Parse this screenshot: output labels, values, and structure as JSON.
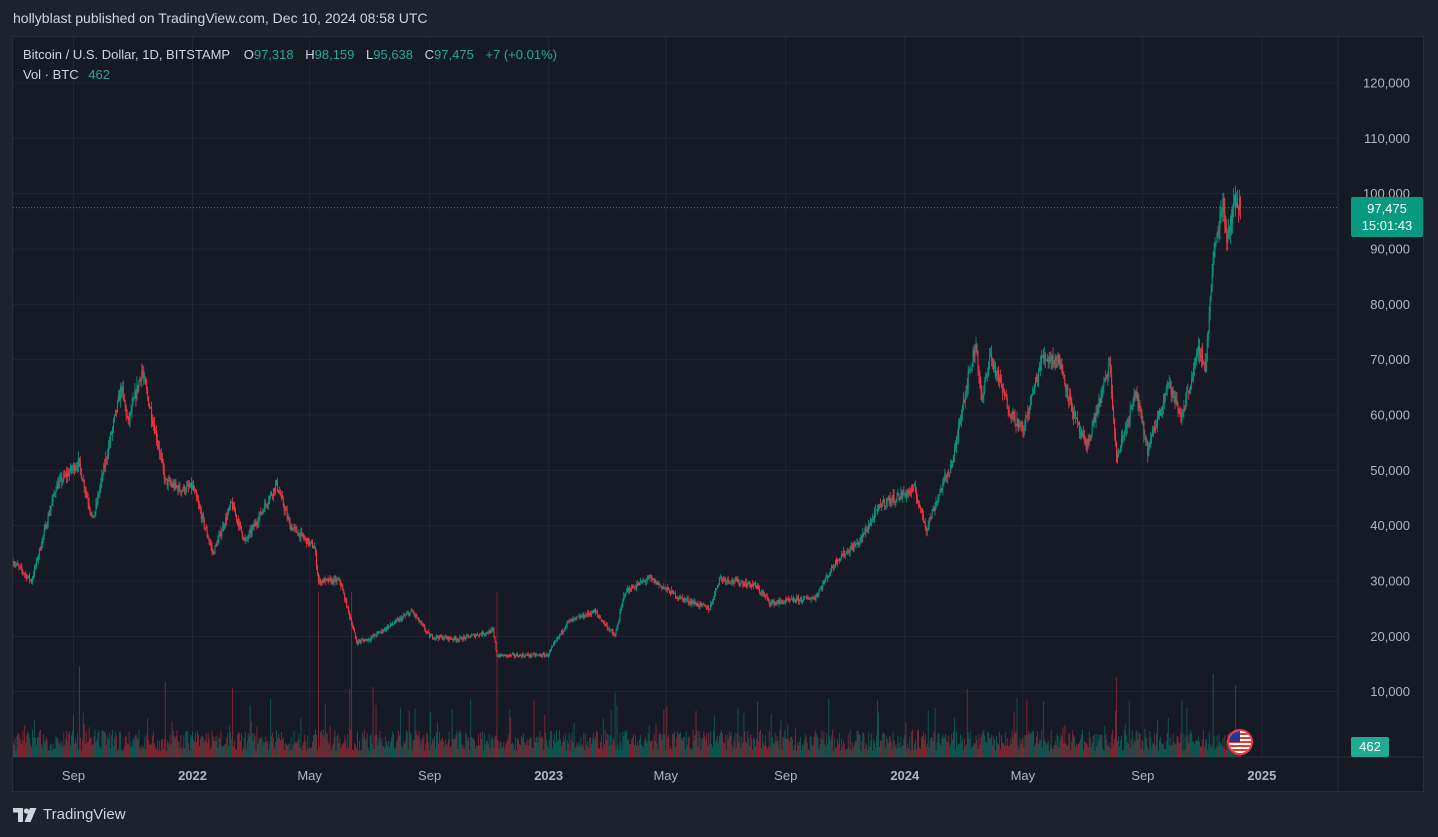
{
  "header": {
    "published": "hollyblast published on TradingView.com, Dec 10, 2024 08:58 UTC"
  },
  "legend": {
    "symbol": "Bitcoin / U.S. Dollar, 1D, BITSTAMP",
    "o_label": "O",
    "o_value": "97,318",
    "h_label": "H",
    "h_value": "98,159",
    "l_label": "L",
    "l_value": "95,638",
    "c_label": "C",
    "c_value": "97,475",
    "change": "+7 (+0.01%)",
    "vol_label": "Vol · BTC",
    "vol_value": "462"
  },
  "price_badge": {
    "price": "97,475",
    "countdown": "15:01:43"
  },
  "volume_badge": "462",
  "footer": {
    "brand": "TradingView"
  },
  "colors": {
    "up": "#089981",
    "down": "#f23645",
    "bg": "#161a25",
    "grid": "#232733"
  },
  "icons": {
    "event": "us-flag-icon",
    "logo": "tradingview-logo-icon"
  },
  "chart_data": {
    "type": "candlestick",
    "series_name": "Bitcoin / U.S. Dollar",
    "y_axis": {
      "ticks": [
        10000,
        20000,
        30000,
        40000,
        50000,
        60000,
        70000,
        80000,
        90000,
        100000,
        110000,
        120000
      ],
      "tick_labels": [
        "10,000",
        "20,000",
        "30,000",
        "40,000",
        "50,000",
        "60,000",
        "70,000",
        "80,000",
        "90,000",
        "100,000",
        "110,000",
        "120,000"
      ],
      "range": [
        0,
        126500
      ]
    },
    "x_axis": {
      "range": [
        "2021-07-01",
        "2025-03-20"
      ],
      "ticks": [
        {
          "date": "2021-09-01",
          "label": "Sep",
          "bold": false
        },
        {
          "date": "2022-01-01",
          "label": "2022",
          "bold": true
        },
        {
          "date": "2022-05-01",
          "label": "May",
          "bold": false
        },
        {
          "date": "2022-09-01",
          "label": "Sep",
          "bold": false
        },
        {
          "date": "2023-01-01",
          "label": "2023",
          "bold": true
        },
        {
          "date": "2023-05-01",
          "label": "May",
          "bold": false
        },
        {
          "date": "2023-09-01",
          "label": "Sep",
          "bold": false
        },
        {
          "date": "2024-01-01",
          "label": "2024",
          "bold": true
        },
        {
          "date": "2024-05-01",
          "label": "May",
          "bold": false
        },
        {
          "date": "2024-09-01",
          "label": "Sep",
          "bold": false
        },
        {
          "date": "2025-01-01",
          "label": "2025",
          "bold": true
        }
      ]
    },
    "last_price": 97475,
    "close_path": [
      [
        "2021-07-01",
        33500
      ],
      [
        "2021-07-20",
        30000
      ],
      [
        "2021-08-14",
        47000
      ],
      [
        "2021-09-06",
        51500
      ],
      [
        "2021-09-21",
        41000
      ],
      [
        "2021-10-20",
        65000
      ],
      [
        "2021-10-27",
        58500
      ],
      [
        "2021-11-10",
        68000
      ],
      [
        "2021-11-27",
        54500
      ],
      [
        "2021-12-04",
        48000
      ],
      [
        "2021-12-20",
        46500
      ],
      [
        "2022-01-01",
        47000
      ],
      [
        "2022-01-22",
        35000
      ],
      [
        "2022-02-10",
        44000
      ],
      [
        "2022-02-24",
        37000
      ],
      [
        "2022-03-28",
        47500
      ],
      [
        "2022-04-11",
        40000
      ],
      [
        "2022-05-06",
        36000
      ],
      [
        "2022-05-10",
        30000
      ],
      [
        "2022-06-01",
        30000
      ],
      [
        "2022-06-13",
        22500
      ],
      [
        "2022-06-18",
        19000
      ],
      [
        "2022-07-01",
        19500
      ],
      [
        "2022-08-14",
        24500
      ],
      [
        "2022-09-01",
        20000
      ],
      [
        "2022-10-01",
        19500
      ],
      [
        "2022-11-05",
        21000
      ],
      [
        "2022-11-09",
        16500
      ],
      [
        "2022-12-31",
        16600
      ],
      [
        "2023-01-20",
        22500
      ],
      [
        "2023-02-17",
        24500
      ],
      [
        "2023-03-10",
        20000
      ],
      [
        "2023-03-20",
        28000
      ],
      [
        "2023-04-14",
        30500
      ],
      [
        "2023-05-15",
        27000
      ],
      [
        "2023-06-15",
        25000
      ],
      [
        "2023-06-25",
        30500
      ],
      [
        "2023-07-31",
        29200
      ],
      [
        "2023-08-17",
        26000
      ],
      [
        "2023-10-01",
        27000
      ],
      [
        "2023-10-24",
        34000
      ],
      [
        "2023-11-15",
        37000
      ],
      [
        "2023-12-08",
        44000
      ],
      [
        "2024-01-11",
        46500
      ],
      [
        "2024-01-23",
        39500
      ],
      [
        "2024-02-09",
        47500
      ],
      [
        "2024-02-20",
        52000
      ],
      [
        "2024-02-28",
        61000
      ],
      [
        "2024-03-14",
        73000
      ],
      [
        "2024-03-20",
        62000
      ],
      [
        "2024-03-28",
        71000
      ],
      [
        "2024-04-17",
        61000
      ],
      [
        "2024-05-01",
        57000
      ],
      [
        "2024-05-21",
        70500
      ],
      [
        "2024-06-07",
        70000
      ],
      [
        "2024-06-24",
        59000
      ],
      [
        "2024-07-05",
        54000
      ],
      [
        "2024-07-29",
        69000
      ],
      [
        "2024-08-05",
        52000
      ],
      [
        "2024-08-25",
        64000
      ],
      [
        "2024-09-06",
        53500
      ],
      [
        "2024-09-27",
        66000
      ],
      [
        "2024-10-10",
        59500
      ],
      [
        "2024-10-29",
        72000
      ],
      [
        "2024-11-04",
        68500
      ],
      [
        "2024-11-12",
        88000
      ],
      [
        "2024-11-22",
        99000
      ],
      [
        "2024-11-26",
        92000
      ],
      [
        "2024-12-05",
        99000
      ],
      [
        "2024-12-10",
        97475
      ]
    ],
    "volume": {
      "last": 462,
      "spikes": [
        [
          "2022-05-10",
          30000,
          "down"
        ],
        [
          "2022-06-13",
          32000,
          "down"
        ],
        [
          "2022-11-09",
          28000,
          "down"
        ],
        [
          "2021-09-07",
          12000,
          "down"
        ],
        [
          "2021-12-04",
          10000,
          "down"
        ],
        [
          "2024-08-05",
          10500,
          "down"
        ],
        [
          "2024-03-05",
          9000,
          "down"
        ],
        [
          "2024-11-12",
          11000,
          "up"
        ],
        [
          "2024-12-05",
          9500,
          "down"
        ],
        [
          "2023-03-10",
          8500,
          "up"
        ]
      ]
    }
  }
}
